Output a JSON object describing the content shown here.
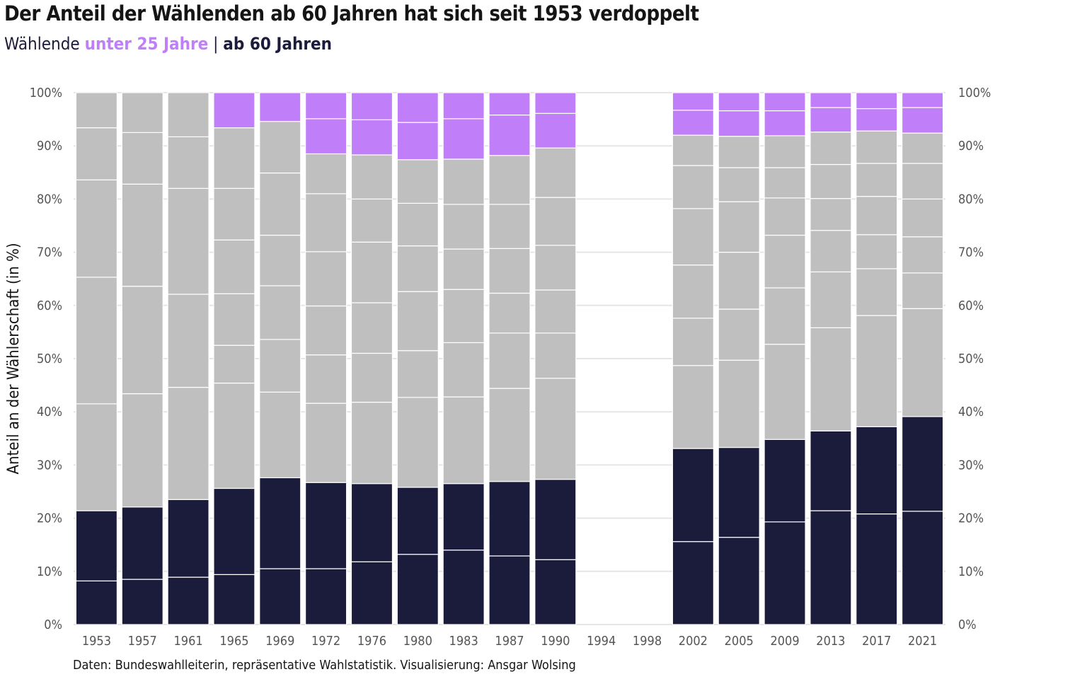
{
  "title": "Der Anteil der Wählenden ab 60 Jahren hat sich seit 1953 verdoppelt",
  "subtitle": {
    "prefix": "Wählende ",
    "young_label": "unter 25 Jahre",
    "separator": " | ",
    "old_label": "ab 60 Jahren"
  },
  "caption": "Daten: Bundeswahlleiterin, repräsentative Wahlstatistik. Visualisierung: Ansgar Wolsing",
  "colors": {
    "young": "#c07ff8",
    "middle": "#bfbfbf",
    "old": "#1b1c3b",
    "grid": "#e6e6e6",
    "segment_border": "#ffffff"
  },
  "chart_data": {
    "type": "bar",
    "stacked": true,
    "ylabel": "Anteil an der Wählerschaft (in %)",
    "xlabel": "",
    "ylim": [
      0,
      100
    ],
    "yticks": [
      "0%",
      "10%",
      "20%",
      "30%",
      "40%",
      "50%",
      "60%",
      "70%",
      "80%",
      "90%",
      "100%"
    ],
    "categories": [
      "1953",
      "1957",
      "1961",
      "1965",
      "1969",
      "1972",
      "1976",
      "1980",
      "1983",
      "1987",
      "1990",
      "1994",
      "1998",
      "2002",
      "2005",
      "2009",
      "2013",
      "2017",
      "2021"
    ],
    "segment_groups": [
      "old",
      "old",
      "middle",
      "middle",
      "middle",
      "middle",
      "middle",
      "middle",
      "young",
      "young"
    ],
    "cumulative_boundaries": [
      [
        8.2,
        21.4,
        41.5,
        65.3,
        83.6,
        93.4,
        100
      ],
      [
        8.5,
        22.1,
        43.4,
        63.6,
        82.8,
        92.5,
        100
      ],
      [
        8.9,
        23.5,
        44.6,
        62.1,
        82.0,
        91.7,
        100
      ],
      [
        9.4,
        25.6,
        45.4,
        52.5,
        62.2,
        72.3,
        82.0,
        93.4,
        100
      ],
      [
        10.5,
        27.6,
        43.7,
        53.6,
        63.7,
        73.2,
        84.9,
        94.6,
        100
      ],
      [
        10.5,
        26.7,
        41.6,
        50.7,
        59.9,
        70.1,
        81.0,
        88.5,
        95.1,
        100
      ],
      [
        11.8,
        26.5,
        41.8,
        51.0,
        60.5,
        71.9,
        80.0,
        88.3,
        94.9,
        100
      ],
      [
        13.2,
        25.8,
        42.7,
        51.5,
        62.6,
        71.2,
        79.2,
        87.4,
        94.4,
        100
      ],
      [
        14.0,
        26.5,
        42.8,
        53.0,
        63.0,
        70.6,
        79.0,
        87.5,
        95.1,
        100
      ],
      [
        12.9,
        26.9,
        44.4,
        54.8,
        62.3,
        70.7,
        79.0,
        88.2,
        95.8,
        100
      ],
      [
        12.2,
        27.3,
        46.3,
        54.8,
        62.9,
        71.3,
        80.3,
        89.6,
        96.1,
        100
      ],
      [],
      [],
      [
        15.6,
        33.1,
        48.7,
        57.6,
        67.6,
        78.2,
        86.3,
        92.0,
        96.7,
        100
      ],
      [
        16.4,
        33.3,
        49.7,
        59.3,
        70.0,
        79.5,
        85.9,
        91.8,
        96.6,
        100
      ],
      [
        19.3,
        34.8,
        52.7,
        63.3,
        73.2,
        80.2,
        85.9,
        91.9,
        96.6,
        100
      ],
      [
        21.4,
        36.4,
        55.8,
        66.3,
        74.1,
        80.1,
        86.5,
        92.6,
        97.2,
        100
      ],
      [
        20.8,
        37.2,
        58.1,
        66.9,
        73.3,
        80.5,
        86.7,
        92.8,
        97.0,
        100
      ],
      [
        21.3,
        39.1,
        59.4,
        66.1,
        72.9,
        80.0,
        86.7,
        92.4,
        97.2,
        100
      ]
    ]
  }
}
